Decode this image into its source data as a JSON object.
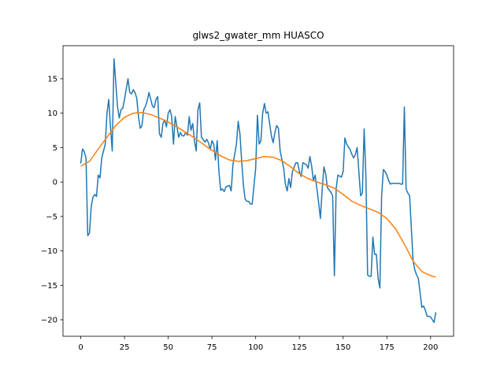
{
  "chart_data": {
    "type": "line",
    "title": "glws2_gwater_mm HUASCO",
    "xlim": [
      -10.15,
      213.15
    ],
    "ylim": [
      -22.4,
      19.8
    ],
    "xticks": [
      0,
      25,
      50,
      75,
      100,
      125,
      150,
      175,
      200
    ],
    "yticks": [
      {
        "value": -20,
        "label": "−20"
      },
      {
        "value": -15,
        "label": "−15"
      },
      {
        "value": -10,
        "label": "−10"
      },
      {
        "value": -5,
        "label": "−5"
      },
      0,
      5,
      10,
      15
    ],
    "grid": false,
    "series": [
      {
        "color": "#1f77b4",
        "x": [
          0,
          1,
          2,
          3,
          4,
          5,
          6,
          7,
          8,
          9,
          10,
          11,
          12,
          13,
          14,
          15,
          16,
          17,
          18,
          19,
          20,
          21,
          22,
          23,
          24,
          25,
          27,
          28,
          29,
          30,
          31,
          32,
          33,
          34,
          35,
          36,
          37,
          38,
          39,
          41,
          42,
          43,
          44,
          45,
          46,
          47,
          48,
          49,
          50,
          51,
          52,
          53,
          54,
          56,
          57,
          58,
          59,
          60,
          61,
          62,
          63,
          64,
          65,
          66,
          67,
          68,
          69,
          71,
          72,
          73,
          74,
          75,
          76,
          77,
          78,
          79,
          80,
          81,
          82,
          83,
          85,
          86,
          87,
          88,
          89,
          90,
          91,
          92,
          93,
          94,
          95,
          96,
          97,
          98,
          100,
          101,
          102,
          103,
          104,
          105,
          106,
          107,
          109,
          110,
          111,
          112,
          113,
          114,
          116,
          117,
          118,
          119,
          120,
          121,
          123,
          124,
          125,
          126,
          127,
          129,
          130,
          131,
          132,
          133,
          134,
          136,
          137,
          138,
          139,
          140,
          141,
          143,
          144,
          145,
          146,
          147,
          149,
          150,
          151,
          152,
          154,
          155,
          156,
          157,
          158,
          160,
          161,
          162,
          163,
          164,
          165,
          166,
          167,
          168,
          169,
          170,
          171,
          172,
          173,
          174,
          175,
          176,
          177,
          178,
          179,
          180,
          181,
          182,
          183,
          184,
          185,
          186,
          187,
          188,
          190,
          191,
          192,
          193,
          195,
          196,
          197,
          198,
          199,
          200,
          201,
          202,
          203
        ],
        "values": [
          2.7,
          4.8,
          4.4,
          3.5,
          -7.8,
          -7.4,
          -3.5,
          -2.2,
          -1.8,
          -2.1,
          1.0,
          0.6,
          3.5,
          4.5,
          5.5,
          10,
          12,
          8,
          4.5,
          17.9,
          14.5,
          11,
          9.3,
          10.5,
          10.7,
          12,
          15,
          13,
          12.8,
          13.4,
          13,
          12.2,
          9.5,
          7.8,
          8.2,
          10.5,
          11,
          11.8,
          13,
          11,
          10.8,
          12,
          12.4,
          7,
          6.5,
          8.5,
          9,
          8,
          10,
          10.5,
          9.5,
          5.5,
          9.5,
          6.5,
          7.2,
          6.7,
          6.7,
          7.2,
          6.8,
          9.5,
          7.5,
          8.5,
          6,
          4.5,
          10.5,
          11.5,
          6.5,
          5.8,
          6.2,
          5.7,
          4.7,
          6,
          5.5,
          3.2,
          6,
          1.5,
          -1.2,
          -1.0,
          -1.4,
          -0.7,
          -0.5,
          -1.3,
          2.5,
          4,
          5.5,
          8.8,
          7,
          3,
          -0.5,
          -2.5,
          -2.8,
          -2.8,
          -3.2,
          -3.2,
          2,
          9.7,
          5.5,
          6,
          10,
          11.4,
          10,
          10.2,
          6.7,
          5.7,
          7.2,
          8.2,
          7.8,
          4.5,
          2,
          -0.3,
          -1.3,
          0.5,
          -0.8,
          1.5,
          2.8,
          2.8,
          1.5,
          0.8,
          2.8,
          2.5,
          2,
          3.7,
          2.3,
          0.2,
          1,
          -3,
          -5.3,
          -1.2,
          2.2,
          1.2,
          -0.8,
          -1.5,
          -2,
          -13.6,
          -1,
          1,
          0.7,
          1.5,
          6.4,
          5.5,
          4.7,
          4,
          3.5,
          4,
          5,
          -2,
          -1.6,
          7.7,
          1,
          -13.5,
          -13.7,
          -13.7,
          -8,
          -10.5,
          -10.5,
          -14,
          -15.4,
          -2,
          1.8,
          1.5,
          1,
          0.2,
          -0.3,
          -0.2,
          -0.2,
          -0.2,
          -0.2,
          -0.2,
          -0.3,
          -0.3,
          10.9,
          -1,
          -1.6,
          -2,
          -11.5,
          -12.8,
          -13.5,
          -14,
          -18.2,
          -18,
          -18.6,
          -19.5,
          -19.5,
          -19.6,
          -20,
          -20.4,
          -18.9
        ]
      },
      {
        "color": "#ff7f0e",
        "x": [
          0,
          5,
          10,
          15,
          20,
          25,
          30,
          35,
          40,
          45,
          50,
          55,
          60,
          65,
          70,
          75,
          80,
          85,
          90,
          95,
          100,
          105,
          110,
          115,
          120,
          125,
          130,
          135,
          140,
          145,
          150,
          155,
          160,
          165,
          170,
          175,
          180,
          185,
          190,
          195,
          200,
          203
        ],
        "values": [
          2.3,
          3,
          4.8,
          6.5,
          8.2,
          9.4,
          10,
          10.1,
          9.8,
          9.3,
          8.7,
          8,
          7.2,
          6.4,
          5.5,
          4.6,
          3.8,
          3.2,
          3,
          3.1,
          3.4,
          3.7,
          3.6,
          3.1,
          2.2,
          1.2,
          0.5,
          0,
          -0.4,
          -0.9,
          -1.8,
          -2.8,
          -3.4,
          -3.9,
          -4.4,
          -5.3,
          -6.8,
          -9,
          -11.5,
          -13,
          -13.6,
          -13.8
        ]
      }
    ]
  }
}
